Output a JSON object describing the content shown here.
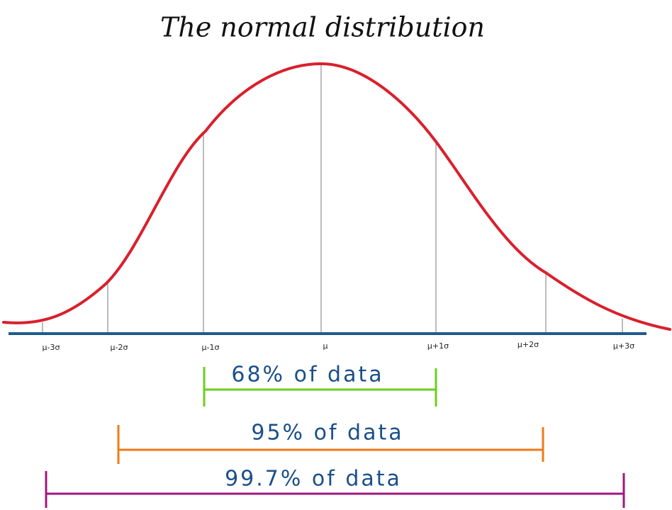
{
  "title": "The normal distribution",
  "axis_labels": [
    "μ-3σ",
    "μ-2σ",
    "μ-1σ",
    "μ",
    "μ+1σ",
    "μ+2σ",
    "μ+3σ"
  ],
  "ranges": [
    {
      "label": "68% of data"
    },
    {
      "label": "95% of data"
    },
    {
      "label": "99.7% of data"
    }
  ]
}
